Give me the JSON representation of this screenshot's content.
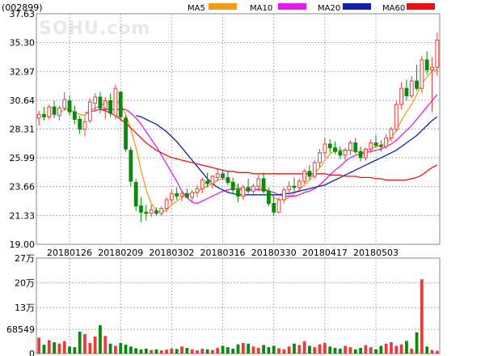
{
  "stock": {
    "code": "(002899)"
  },
  "watermark": "SOHU.com",
  "legend": [
    {
      "label": "MA5",
      "color": "#f49b1a"
    },
    {
      "label": "MA10",
      "color": "#e619e6"
    },
    {
      "label": "MA20",
      "color": "#1022a8"
    },
    {
      "label": "MA60",
      "color": "#e81414"
    }
  ],
  "colors": {
    "up": "#e83c3c",
    "down": "#0a8a0a",
    "grid": "#a0a0a0",
    "border": "#888888"
  },
  "chart_data": [
    {
      "type": "candlestick",
      "title": "(002899)",
      "ylim": [
        19.0,
        37.63
      ],
      "ytick_labels": [
        "37.63",
        "35.30",
        "32.97",
        "30.64",
        "28.31",
        "25.99",
        "23.66",
        "21.33",
        "19.00"
      ],
      "xtick_labels": [
        "20180126",
        "20180209",
        "20180302",
        "20180316",
        "20180330",
        "20180417",
        "20180503"
      ],
      "xtick_index": [
        6,
        16,
        26,
        36,
        46,
        56,
        66
      ],
      "n": 79,
      "candles": [
        [
          29.2,
          29.8,
          28.6,
          29.5
        ],
        [
          29.5,
          30.1,
          29.0,
          29.3
        ],
        [
          29.3,
          30.3,
          29.1,
          30.1
        ],
        [
          30.1,
          30.6,
          29.2,
          29.5
        ],
        [
          29.4,
          30.2,
          29.0,
          30.0
        ],
        [
          30.0,
          31.3,
          29.8,
          30.7
        ],
        [
          30.6,
          31.0,
          29.4,
          29.7
        ],
        [
          29.7,
          30.2,
          28.7,
          29.1
        ],
        [
          29.1,
          29.4,
          27.9,
          28.3
        ],
        [
          28.3,
          29.3,
          27.7,
          28.9
        ],
        [
          29.0,
          30.8,
          28.8,
          30.5
        ],
        [
          30.4,
          31.2,
          29.7,
          30.9
        ],
        [
          30.9,
          31.3,
          29.6,
          30.0
        ],
        [
          30.0,
          30.9,
          29.1,
          30.6
        ],
        [
          30.6,
          31.2,
          29.3,
          29.6
        ],
        [
          29.4,
          31.9,
          29.1,
          31.6
        ],
        [
          31.3,
          31.4,
          29.0,
          29.3
        ],
        [
          29.2,
          29.4,
          26.5,
          26.7
        ],
        [
          26.6,
          26.9,
          23.7,
          24.1
        ],
        [
          24.0,
          24.3,
          21.7,
          22.1
        ],
        [
          22.1,
          22.8,
          20.8,
          21.6
        ],
        [
          21.6,
          22.2,
          20.9,
          21.5
        ],
        [
          21.5,
          22.2,
          21.2,
          21.8
        ],
        [
          21.7,
          22.0,
          21.3,
          21.5
        ],
        [
          21.5,
          22.1,
          21.3,
          21.9
        ],
        [
          21.9,
          22.8,
          21.6,
          22.6
        ],
        [
          22.6,
          23.4,
          22.3,
          23.1
        ],
        [
          23.1,
          23.6,
          22.6,
          22.9
        ],
        [
          22.9,
          23.4,
          22.5,
          23.1
        ],
        [
          23.1,
          23.5,
          22.7,
          22.8
        ],
        [
          22.8,
          23.4,
          22.5,
          23.2
        ],
        [
          23.2,
          23.8,
          22.8,
          23.5
        ],
        [
          23.5,
          24.4,
          23.1,
          24.2
        ],
        [
          24.1,
          24.8,
          23.6,
          23.9
        ],
        [
          23.9,
          24.6,
          23.5,
          24.5
        ],
        [
          24.4,
          25.1,
          24.1,
          24.7
        ],
        [
          24.7,
          25.0,
          24.2,
          24.4
        ],
        [
          24.4,
          24.9,
          23.8,
          24.0
        ],
        [
          24.0,
          24.4,
          23.1,
          23.4
        ],
        [
          23.4,
          23.9,
          22.4,
          22.9
        ],
        [
          22.9,
          23.8,
          22.6,
          23.6
        ],
        [
          23.6,
          24.3,
          23.1,
          23.3
        ],
        [
          23.3,
          23.9,
          22.9,
          23.7
        ],
        [
          23.7,
          24.6,
          23.3,
          24.3
        ],
        [
          24.3,
          24.8,
          23.1,
          23.3
        ],
        [
          23.3,
          23.6,
          22.1,
          22.3
        ],
        [
          22.3,
          22.9,
          21.3,
          21.6
        ],
        [
          21.6,
          22.8,
          21.5,
          22.6
        ],
        [
          22.6,
          23.6,
          22.3,
          23.4
        ],
        [
          23.4,
          24.1,
          23.0,
          23.7
        ],
        [
          23.7,
          24.4,
          23.2,
          23.6
        ],
        [
          23.6,
          24.3,
          23.3,
          24.1
        ],
        [
          24.1,
          25.1,
          23.9,
          24.9
        ],
        [
          24.9,
          25.4,
          24.2,
          24.5
        ],
        [
          24.5,
          25.8,
          24.3,
          25.6
        ],
        [
          25.6,
          26.7,
          25.2,
          26.4
        ],
        [
          26.4,
          27.6,
          26.0,
          27.1
        ],
        [
          27.1,
          27.5,
          26.4,
          26.8
        ],
        [
          26.8,
          27.3,
          26.3,
          26.5
        ],
        [
          26.5,
          26.9,
          25.9,
          26.2
        ],
        [
          26.2,
          26.8,
          25.8,
          26.6
        ],
        [
          26.6,
          27.4,
          26.2,
          27.2
        ],
        [
          27.2,
          27.6,
          26.3,
          26.5
        ],
        [
          26.5,
          26.9,
          25.7,
          26.0
        ],
        [
          26.0,
          26.8,
          25.8,
          26.7
        ],
        [
          26.7,
          27.5,
          26.4,
          27.2
        ],
        [
          27.2,
          27.8,
          26.8,
          27.0
        ],
        [
          27.0,
          27.4,
          26.5,
          26.9
        ],
        [
          26.9,
          27.9,
          26.7,
          27.6
        ],
        [
          27.6,
          28.5,
          27.3,
          28.3
        ],
        [
          28.3,
          30.6,
          28.1,
          30.3
        ],
        [
          30.3,
          32.1,
          29.9,
          31.6
        ],
        [
          31.6,
          32.3,
          30.6,
          31.0
        ],
        [
          31.0,
          32.6,
          30.8,
          32.2
        ],
        [
          32.2,
          33.5,
          31.4,
          31.6
        ],
        [
          31.6,
          34.2,
          31.2,
          33.9
        ],
        [
          33.9,
          34.6,
          32.7,
          33.1
        ],
        [
          33.1,
          34.1,
          29.7,
          33.3
        ],
        [
          33.3,
          36.1,
          32.6,
          35.5
        ]
      ],
      "ma_series": [
        {
          "name": "MA5",
          "values": [
            null,
            null,
            null,
            null,
            29.6,
            29.9,
            29.9,
            29.7,
            29.5,
            29.4,
            29.8,
            30.0,
            30.2,
            30.4,
            30.5,
            30.6,
            30.3,
            29.5,
            28.3,
            26.8,
            25.0,
            23.4,
            22.3,
            21.7,
            21.6,
            21.8,
            22.2,
            22.5,
            22.8,
            23.0,
            23.1,
            23.2,
            23.5,
            23.7,
            23.9,
            24.2,
            24.3,
            24.2,
            24.0,
            23.6,
            23.5,
            23.4,
            23.4,
            23.5,
            23.6,
            23.3,
            22.8,
            22.6,
            22.6,
            22.8,
            23.1,
            23.4,
            23.8,
            24.2,
            24.7,
            25.2,
            25.8,
            26.3,
            26.6,
            26.6,
            26.6,
            26.6,
            26.5,
            26.4,
            26.5,
            26.7,
            26.9,
            27.0,
            27.2,
            27.6,
            28.2,
            29.0,
            29.7,
            30.3,
            31.1,
            32.0,
            32.5,
            33.0,
            33.1
          ]
        },
        {
          "name": "MA10",
          "values": [
            null,
            null,
            null,
            null,
            null,
            null,
            null,
            null,
            null,
            29.6,
            29.7,
            29.8,
            29.9,
            29.9,
            29.9,
            29.9,
            29.9,
            29.9,
            29.6,
            29.2,
            28.7,
            28.1,
            27.5,
            26.9,
            26.2,
            25.5,
            24.8,
            24.1,
            23.3,
            22.8,
            22.4,
            22.3,
            22.5,
            22.7,
            22.9,
            23.1,
            23.3,
            23.4,
            23.5,
            23.5,
            23.4,
            23.4,
            23.4,
            23.4,
            23.4,
            23.3,
            23.2,
            23.0,
            22.9,
            22.9,
            22.9,
            23.0,
            23.2,
            23.3,
            23.5,
            23.8,
            24.2,
            24.6,
            25.0,
            25.3,
            25.7,
            26.0,
            26.2,
            26.3,
            26.4,
            26.5,
            26.6,
            26.7,
            26.9,
            27.1,
            27.4,
            27.8,
            28.2,
            28.6,
            29.1,
            29.6,
            30.1,
            30.6,
            31.1
          ]
        },
        {
          "name": "MA20",
          "values": [
            null,
            null,
            null,
            null,
            null,
            null,
            null,
            null,
            null,
            null,
            null,
            null,
            null,
            null,
            null,
            null,
            null,
            null,
            null,
            29.4,
            29.3,
            29.1,
            28.9,
            28.7,
            28.4,
            28.1,
            27.7,
            27.3,
            26.8,
            26.3,
            25.8,
            25.3,
            24.8,
            24.3,
            23.9,
            23.6,
            23.4,
            23.2,
            23.1,
            23.0,
            23.0,
            23.0,
            23.0,
            23.0,
            23.0,
            23.0,
            23.0,
            23.0,
            23.1,
            23.1,
            23.2,
            23.3,
            23.4,
            23.5,
            23.6,
            23.7,
            23.8,
            24.0,
            24.2,
            24.4,
            24.6,
            24.8,
            25.0,
            25.2,
            25.4,
            25.6,
            25.8,
            26.0,
            26.2,
            26.4,
            26.6,
            26.9,
            27.2,
            27.5,
            27.8,
            28.2,
            28.6,
            29.0,
            29.3
          ]
        },
        {
          "name": "MA60",
          "values": [
            null,
            null,
            null,
            null,
            null,
            null,
            null,
            null,
            null,
            null,
            null,
            null,
            29.9,
            29.8,
            29.6,
            29.4,
            29.1,
            28.8,
            28.4,
            28.0,
            27.6,
            27.2,
            26.9,
            26.6,
            26.4,
            26.2,
            26.0,
            25.9,
            25.8,
            25.7,
            25.6,
            25.5,
            25.4,
            25.3,
            25.2,
            25.1,
            25.0,
            24.9,
            24.9,
            24.8,
            24.8,
            24.8,
            24.7,
            24.7,
            24.7,
            24.7,
            24.7,
            24.7,
            24.7,
            24.7,
            24.7,
            24.7,
            24.7,
            24.7,
            24.7,
            24.7,
            24.7,
            24.6,
            24.6,
            24.6,
            24.5,
            24.5,
            24.5,
            24.4,
            24.4,
            24.4,
            24.3,
            24.3,
            24.2,
            24.2,
            24.2,
            24.2,
            24.2,
            24.3,
            24.4,
            24.6,
            24.9,
            25.2,
            25.4
          ]
        }
      ]
    },
    {
      "type": "bar",
      "title": "",
      "ylim": [
        0,
        270000
      ],
      "ytick_labels": [
        "27万",
        "20万",
        "13万",
        "68549",
        "0"
      ],
      "ytick_values": [
        270000,
        200000,
        130000,
        68549,
        0
      ],
      "volume": [
        45000,
        25000,
        38000,
        32000,
        28000,
        35000,
        20000,
        18000,
        62000,
        55000,
        30000,
        48000,
        80000,
        50000,
        28000,
        22000,
        30000,
        25000,
        20000,
        15000,
        12000,
        14000,
        10000,
        12000,
        9000,
        11000,
        15000,
        13000,
        20000,
        16000,
        12000,
        9000,
        14000,
        12000,
        10000,
        16000,
        22000,
        18000,
        14000,
        26000,
        30000,
        28000,
        20000,
        16000,
        24000,
        18000,
        22000,
        15000,
        12000,
        20000,
        28000,
        24000,
        35000,
        22000,
        18000,
        26000,
        30000,
        20000,
        16000,
        14000,
        22000,
        18000,
        12000,
        16000,
        24000,
        18000,
        12000,
        22000,
        28000,
        32000,
        22000,
        26000,
        36000,
        14000,
        60000,
        210000,
        20000,
        10000,
        8000
      ]
    }
  ]
}
